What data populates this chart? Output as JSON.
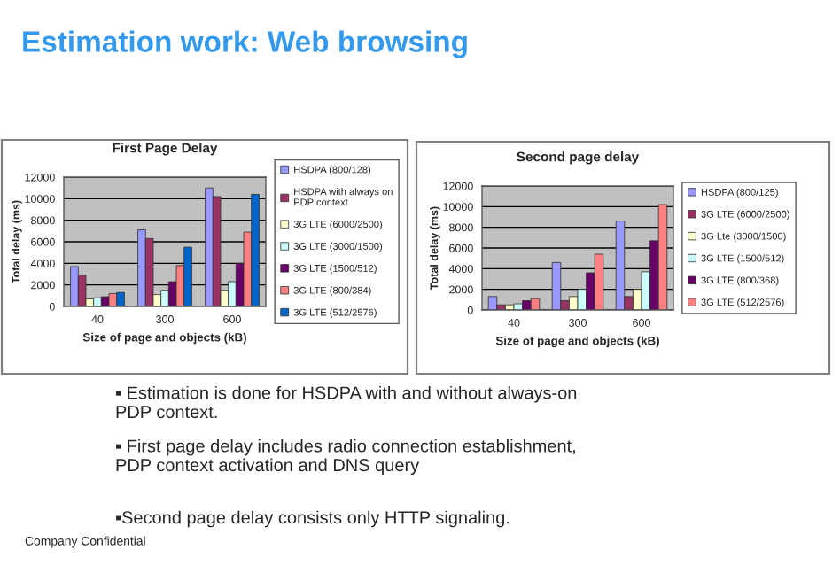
{
  "chart_data": [
    {
      "type": "other",
      "title": "Estimation work: Web browsing",
      "annotations": [
        "▪ Estimation is done for HSDPA with and without always-on\nPDP context.",
        "▪ First page delay includes radio connection establishment,\nPDP context activation and DNS query",
        "▪Second page delay consists only HTTP signaling.",
        "Company Confidential"
      ]
    },
    {
      "type": "bar",
      "title": "First Page Delay",
      "xlabel": "Size of page and objects (kB)",
      "ylabel": "Total delay (ms)",
      "categories": [
        "40",
        "300",
        "600"
      ],
      "ylim": [
        0,
        12000
      ],
      "yticks": [
        0,
        2000,
        4000,
        6000,
        8000,
        10000,
        12000
      ],
      "grid": "y",
      "legend": "right",
      "series": [
        {
          "name": "HSDPA (800/128)",
          "color": "#9999ff",
          "values": [
            3700,
            7100,
            11000
          ]
        },
        {
          "name": "HSDPA with always on\nPDP context",
          "color": "#993366",
          "values": [
            2900,
            6300,
            10200
          ]
        },
        {
          "name": "3G LTE (6000/2500)",
          "color": "#ffffcc",
          "values": [
            700,
            1100,
            1500
          ]
        },
        {
          "name": "3G LTE (3000/1500)",
          "color": "#ccffff",
          "values": [
            800,
            1500,
            2300
          ]
        },
        {
          "name": "3G LTE (1500/512)",
          "color": "#660066",
          "values": [
            900,
            2300,
            4000
          ]
        },
        {
          "name": "3G LTE (800/384)",
          "color": "#ff8080",
          "values": [
            1200,
            3800,
            6900
          ]
        },
        {
          "name": "3G LTE (512/2576)",
          "color": "#0066cc",
          "values": [
            1300,
            5500,
            10400
          ]
        }
      ]
    },
    {
      "type": "bar",
      "title": "Second page delay",
      "xlabel": "Size of page and objects (kB)",
      "ylabel": "Total delay (ms)",
      "categories": [
        "40",
        "300",
        "600"
      ],
      "ylim": [
        0,
        12000
      ],
      "yticks": [
        0,
        2000,
        4000,
        6000,
        8000,
        10000,
        12000
      ],
      "grid": "y",
      "legend": "right",
      "series": [
        {
          "name": "HSDPA (800/125)",
          "color": "#9999ff",
          "values": [
            1300,
            4600,
            8600
          ]
        },
        {
          "name": "3G LTE (6000/2500)",
          "color": "#993366",
          "values": [
            500,
            900,
            1300
          ]
        },
        {
          "name": "3G Lte (3000/1500)",
          "color": "#ffffcc",
          "values": [
            500,
            1300,
            2000
          ]
        },
        {
          "name": "3G LTE (1500/512)",
          "color": "#ccffff",
          "values": [
            600,
            2000,
            3700
          ]
        },
        {
          "name": "3G LTE (800/368)",
          "color": "#660066",
          "values": [
            900,
            3600,
            6700
          ]
        },
        {
          "name": "3G LTE (512/2576)",
          "color": "#ff8080",
          "values": [
            1100,
            5400,
            10200
          ]
        }
      ]
    }
  ]
}
